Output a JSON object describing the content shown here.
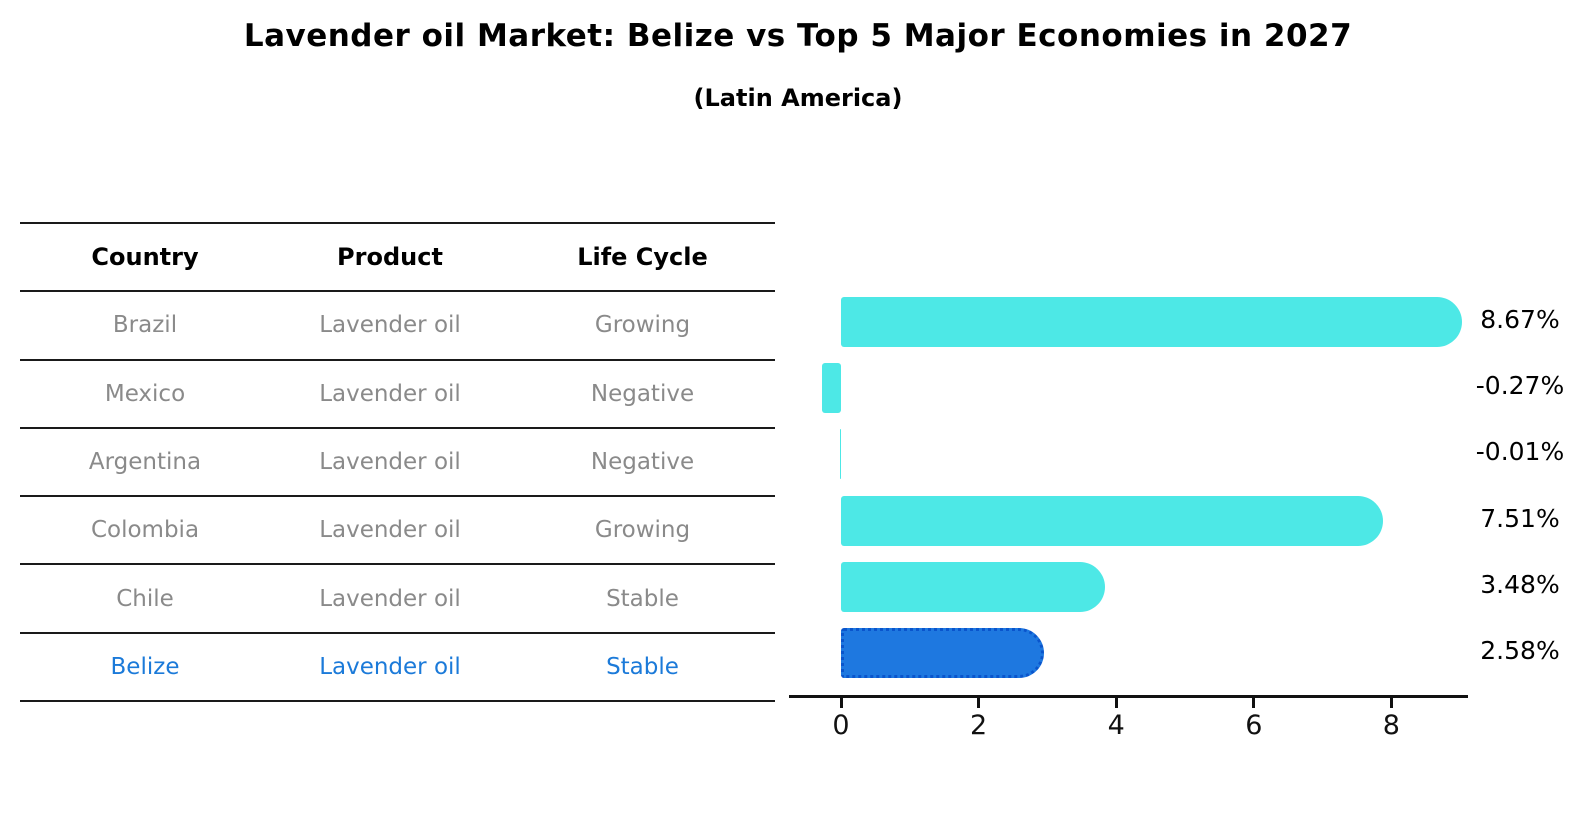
{
  "title": "Lavender oil Market: Belize vs Top 5 Major Economies in 2027",
  "subtitle": "(Latin America)",
  "table": {
    "headers": [
      "Country",
      "Product",
      "Life Cycle"
    ],
    "rows": [
      {
        "country": "Brazil",
        "product": "Lavender oil",
        "life_cycle": "Growing",
        "highlight": false
      },
      {
        "country": "Mexico",
        "product": "Lavender oil",
        "life_cycle": "Negative",
        "highlight": false
      },
      {
        "country": "Argentina",
        "product": "Lavender oil",
        "life_cycle": "Negative",
        "highlight": false
      },
      {
        "country": "Colombia",
        "product": "Lavender oil",
        "life_cycle": "Growing",
        "highlight": false
      },
      {
        "country": "Chile",
        "product": "Lavender oil",
        "life_cycle": "Stable",
        "highlight": false
      },
      {
        "country": "Belize",
        "product": "Lavender oil",
        "life_cycle": "Stable",
        "highlight": true
      }
    ]
  },
  "chart_data": {
    "type": "bar",
    "orientation": "horizontal",
    "categories": [
      "Brazil",
      "Mexico",
      "Argentina",
      "Colombia",
      "Chile",
      "Belize"
    ],
    "values": [
      8.67,
      -0.27,
      -0.01,
      7.51,
      3.48,
      2.58
    ],
    "value_labels": [
      "8.67%",
      "-0.27%",
      "-0.01%",
      "7.51%",
      "3.48%",
      "2.58%"
    ],
    "xticks": [
      "0",
      "2",
      "4",
      "6",
      "8"
    ],
    "xlim": [
      -0.75,
      9.1
    ],
    "grid": false,
    "legend": "none",
    "highlight_index": 5,
    "colors": {
      "bar_default": "#4de8e6",
      "bar_highlight_fill": "#1e78e0",
      "bar_highlight_border": "#0a55cc",
      "highlight_text": "#1b7ad9",
      "axis": "#111111"
    }
  }
}
